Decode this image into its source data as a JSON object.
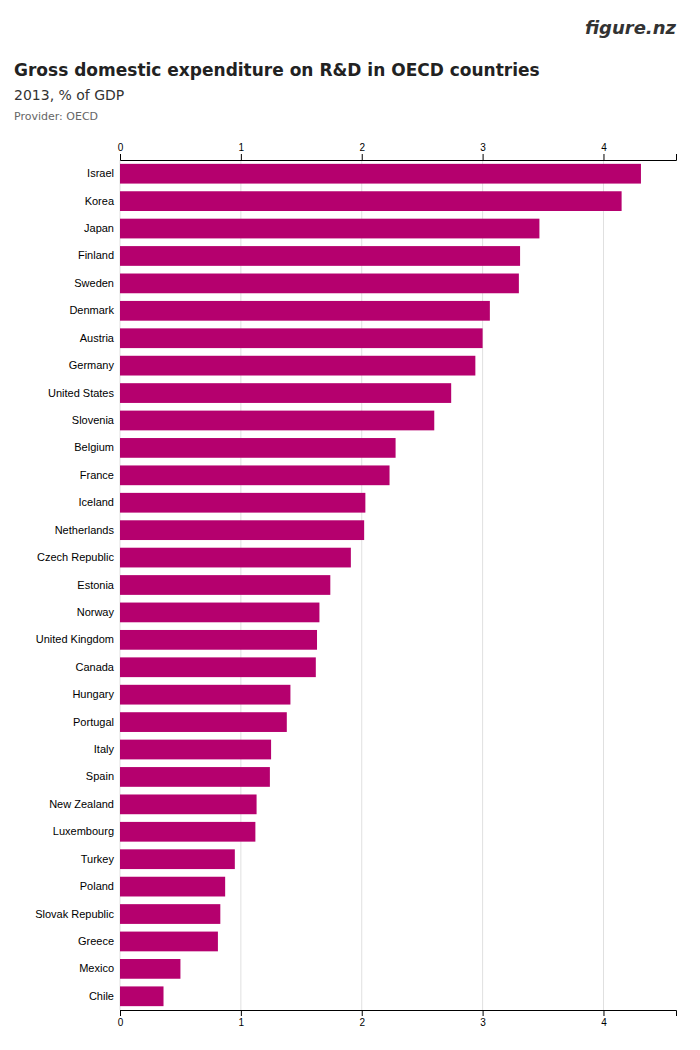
{
  "chart_data": {
    "type": "bar",
    "orientation": "horizontal",
    "title": "Gross domestic expenditure on R&D in OECD countries",
    "subtitle": "2013, % of GDP",
    "annotations": [
      "Provider: OECD",
      "figure.nz"
    ],
    "categories": [
      "Israel",
      "Korea",
      "Japan",
      "Finland",
      "Sweden",
      "Denmark",
      "Austria",
      "Germany",
      "United States",
      "Slovenia",
      "Belgium",
      "France",
      "Iceland",
      "Netherlands",
      "Czech Republic",
      "Estonia",
      "Norway",
      "United Kingdom",
      "Canada",
      "Hungary",
      "Portugal",
      "Italy",
      "Spain",
      "New Zealand",
      "Luxembourg",
      "Turkey",
      "Poland",
      "Slovak Republic",
      "Greece",
      "Mexico",
      "Chile"
    ],
    "values": [
      4.31,
      4.15,
      3.47,
      3.31,
      3.3,
      3.06,
      3.0,
      2.94,
      2.74,
      2.6,
      2.28,
      2.23,
      2.03,
      2.02,
      1.91,
      1.74,
      1.65,
      1.63,
      1.62,
      1.41,
      1.38,
      1.25,
      1.24,
      1.13,
      1.12,
      0.95,
      0.87,
      0.83,
      0.81,
      0.5,
      0.36
    ],
    "color": "#b5006e",
    "xlim": [
      0,
      4.6
    ],
    "xticks": [
      0,
      1,
      2,
      3,
      4
    ],
    "grid": true
  }
}
